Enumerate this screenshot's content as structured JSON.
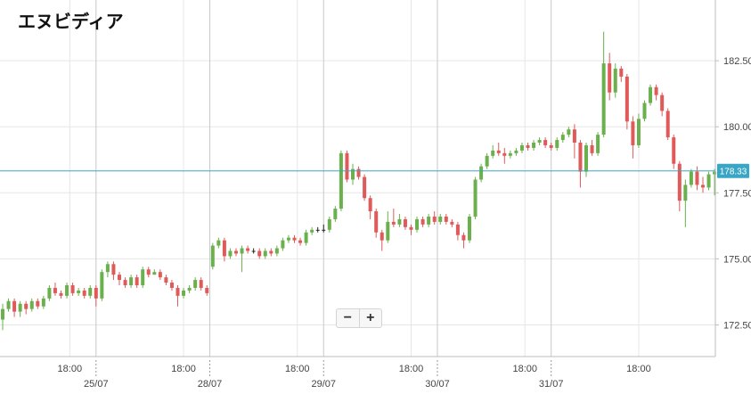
{
  "title": "エヌビディア",
  "zoom": {
    "minus": "−",
    "plus": "+"
  },
  "colors": {
    "up": "#6ab04c",
    "down": "#e05a5a",
    "neutral": "#222222",
    "current_line": "#3aa6c6",
    "grid": "#e6e6e6",
    "axis": "#bdbdbd"
  },
  "chart_data": {
    "type": "candlestick",
    "title": "エヌビディア",
    "current_price": 178.33,
    "current_label": "178.33",
    "ylim": [
      171.3,
      184.8
    ],
    "y_ticks": [
      {
        "value": 172.5,
        "label": "172.50"
      },
      {
        "value": 175.0,
        "label": "175.00"
      },
      {
        "value": 177.5,
        "label": "177.50"
      },
      {
        "value": 180.0,
        "label": "180.00"
      },
      {
        "value": 182.5,
        "label": "182.50"
      }
    ],
    "x_time_ticks": [
      {
        "index": 11.5,
        "label": "18:00"
      },
      {
        "index": 31.0,
        "label": "18:00"
      },
      {
        "index": 50.5,
        "label": "18:00"
      },
      {
        "index": 70.0,
        "label": "18:00"
      },
      {
        "index": 89.5,
        "label": "18:00"
      },
      {
        "index": 109.0,
        "label": "18:00"
      }
    ],
    "x_day_ticks": [
      {
        "index": 16.0,
        "label": "25/07"
      },
      {
        "index": 35.5,
        "label": "28/07"
      },
      {
        "index": 55.0,
        "label": "29/07"
      },
      {
        "index": 74.5,
        "label": "30/07"
      },
      {
        "index": 94.0,
        "label": "31/07"
      }
    ],
    "candles": [
      [
        172.7,
        173.1,
        172.3,
        173.3
      ],
      [
        173.1,
        173.4,
        173.0,
        173.5
      ],
      [
        173.4,
        173.0,
        172.8,
        173.5
      ],
      [
        173.0,
        173.3,
        172.8,
        173.4
      ],
      [
        173.3,
        173.1,
        172.9,
        173.4
      ],
      [
        173.1,
        173.4,
        173.0,
        173.5
      ],
      [
        173.4,
        173.2,
        173.1,
        173.5
      ],
      [
        173.2,
        173.5,
        173.1,
        173.6
      ],
      [
        173.5,
        173.9,
        173.4,
        174.0
      ],
      [
        173.9,
        173.7,
        173.6,
        174.1
      ],
      [
        173.7,
        173.6,
        173.5,
        173.8
      ],
      [
        173.6,
        174.0,
        173.5,
        174.1
      ],
      [
        174.0,
        173.7,
        173.6,
        174.1
      ],
      [
        173.7,
        173.8,
        173.6,
        173.9
      ],
      [
        173.8,
        173.6,
        173.5,
        173.9
      ],
      [
        173.6,
        173.9,
        173.5,
        174.0
      ],
      [
        173.9,
        173.5,
        173.2,
        174.0
      ],
      [
        173.5,
        174.5,
        173.4,
        174.6
      ],
      [
        174.5,
        174.8,
        174.3,
        174.9
      ],
      [
        174.8,
        174.4,
        174.2,
        174.9
      ],
      [
        174.4,
        174.2,
        174.0,
        174.5
      ],
      [
        174.2,
        174.0,
        173.9,
        174.3
      ],
      [
        174.0,
        174.3,
        173.9,
        174.4
      ],
      [
        174.3,
        174.0,
        173.9,
        174.4
      ],
      [
        174.0,
        174.6,
        173.9,
        174.7
      ],
      [
        174.6,
        174.4,
        174.3,
        174.7
      ],
      [
        174.4,
        174.5,
        174.4,
        174.6
      ],
      [
        174.5,
        174.3,
        174.2,
        174.6
      ],
      [
        174.3,
        174.1,
        174.0,
        174.4
      ],
      [
        174.1,
        173.9,
        173.8,
        174.2
      ],
      [
        173.9,
        173.6,
        173.2,
        174.0
      ],
      [
        173.6,
        173.8,
        173.5,
        173.9
      ],
      [
        173.8,
        173.9,
        173.7,
        174.0
      ],
      [
        173.9,
        174.2,
        173.8,
        174.3
      ],
      [
        174.2,
        173.9,
        173.8,
        174.3
      ],
      [
        173.9,
        173.7,
        173.6,
        174.0
      ],
      [
        174.7,
        175.5,
        174.6,
        175.6
      ],
      [
        175.5,
        175.7,
        175.4,
        175.8
      ],
      [
        175.7,
        175.1,
        174.9,
        175.8
      ],
      [
        175.1,
        175.3,
        175.0,
        175.4
      ],
      [
        175.3,
        175.2,
        175.1,
        175.4
      ],
      [
        175.2,
        175.4,
        174.5,
        175.5
      ],
      [
        175.4,
        175.3,
        175.2,
        175.5
      ],
      [
        175.3,
        175.3,
        175.2,
        175.4
      ],
      [
        175.3,
        175.1,
        175.0,
        175.4
      ],
      [
        175.1,
        175.3,
        175.0,
        175.4
      ],
      [
        175.3,
        175.2,
        175.1,
        175.4
      ],
      [
        175.2,
        175.4,
        175.1,
        175.5
      ],
      [
        175.4,
        175.7,
        175.3,
        175.8
      ],
      [
        175.7,
        175.8,
        175.6,
        175.9
      ],
      [
        175.8,
        175.7,
        175.6,
        175.9
      ],
      [
        175.7,
        175.6,
        175.5,
        175.8
      ],
      [
        175.6,
        176.0,
        175.5,
        176.1
      ],
      [
        176.0,
        176.1,
        175.9,
        176.2
      ],
      [
        176.1,
        176.1,
        176.0,
        176.2
      ],
      [
        176.1,
        176.1,
        176.0,
        176.3
      ],
      [
        176.1,
        176.5,
        176.0,
        176.6
      ],
      [
        176.5,
        176.9,
        176.4,
        177.0
      ],
      [
        176.9,
        179.0,
        176.8,
        179.1
      ],
      [
        179.0,
        178.0,
        177.9,
        179.1
      ],
      [
        178.0,
        178.4,
        177.8,
        178.6
      ],
      [
        178.4,
        178.1,
        178.0,
        178.5
      ],
      [
        178.1,
        177.3,
        177.2,
        178.2
      ],
      [
        177.3,
        176.8,
        176.5,
        177.4
      ],
      [
        176.8,
        176.0,
        175.8,
        176.9
      ],
      [
        176.0,
        175.7,
        175.3,
        176.1
      ],
      [
        175.7,
        176.4,
        175.6,
        176.8
      ],
      [
        176.4,
        176.3,
        176.2,
        176.9
      ],
      [
        176.3,
        176.5,
        176.2,
        176.7
      ],
      [
        176.5,
        176.2,
        176.1,
        176.6
      ],
      [
        176.2,
        176.1,
        175.9,
        176.3
      ],
      [
        176.1,
        176.5,
        176.0,
        176.6
      ],
      [
        176.5,
        176.3,
        176.2,
        176.6
      ],
      [
        176.3,
        176.6,
        176.2,
        176.7
      ],
      [
        176.6,
        176.4,
        176.3,
        176.8
      ],
      [
        176.4,
        176.6,
        176.3,
        176.7
      ],
      [
        176.6,
        176.4,
        176.3,
        176.7
      ],
      [
        176.4,
        176.3,
        176.2,
        176.5
      ],
      [
        176.3,
        175.9,
        175.7,
        176.4
      ],
      [
        175.9,
        175.7,
        175.4,
        176.0
      ],
      [
        175.7,
        176.6,
        175.6,
        176.7
      ],
      [
        176.6,
        178.0,
        176.5,
        178.1
      ],
      [
        178.0,
        178.5,
        177.9,
        178.6
      ],
      [
        178.5,
        178.9,
        178.4,
        179.0
      ],
      [
        178.9,
        179.1,
        178.8,
        179.3
      ],
      [
        179.1,
        179.0,
        178.9,
        179.4
      ],
      [
        179.0,
        178.9,
        178.6,
        179.2
      ],
      [
        178.9,
        179.0,
        178.8,
        179.1
      ],
      [
        179.0,
        179.1,
        178.9,
        179.2
      ],
      [
        179.1,
        179.3,
        179.0,
        179.4
      ],
      [
        179.3,
        179.2,
        179.1,
        179.4
      ],
      [
        179.2,
        179.4,
        179.1,
        179.5
      ],
      [
        179.4,
        179.5,
        179.3,
        179.6
      ],
      [
        179.5,
        179.3,
        179.2,
        179.6
      ],
      [
        179.3,
        179.2,
        179.1,
        179.4
      ],
      [
        179.2,
        179.5,
        179.1,
        179.6
      ],
      [
        179.5,
        179.7,
        179.4,
        179.8
      ],
      [
        179.7,
        179.9,
        179.6,
        180.0
      ],
      [
        179.9,
        179.4,
        178.8,
        180.1
      ],
      [
        179.4,
        178.3,
        177.7,
        179.5
      ],
      [
        178.3,
        179.3,
        178.1,
        179.4
      ],
      [
        179.3,
        179.0,
        178.9,
        179.5
      ],
      [
        179.0,
        179.7,
        178.9,
        179.8
      ],
      [
        179.7,
        182.4,
        179.6,
        183.6
      ],
      [
        182.4,
        181.3,
        181.0,
        182.8
      ],
      [
        181.3,
        182.2,
        181.1,
        182.4
      ],
      [
        182.2,
        181.9,
        181.7,
        182.3
      ],
      [
        181.9,
        180.2,
        179.9,
        182.0
      ],
      [
        180.2,
        179.3,
        178.8,
        180.4
      ],
      [
        179.3,
        180.3,
        179.2,
        180.5
      ],
      [
        180.3,
        180.9,
        180.2,
        181.0
      ],
      [
        180.9,
        181.5,
        180.8,
        181.6
      ],
      [
        181.5,
        181.2,
        181.0,
        181.6
      ],
      [
        181.2,
        180.6,
        180.4,
        181.3
      ],
      [
        180.6,
        179.6,
        179.5,
        180.7
      ],
      [
        179.6,
        178.6,
        178.4,
        179.7
      ],
      [
        178.6,
        177.2,
        176.8,
        178.7
      ],
      [
        177.2,
        177.8,
        176.2,
        178.0
      ],
      [
        177.8,
        178.3,
        177.7,
        178.4
      ],
      [
        178.3,
        177.8,
        177.6,
        178.5
      ],
      [
        177.8,
        177.7,
        177.5,
        178.1
      ],
      [
        177.7,
        178.2,
        177.6,
        178.3
      ],
      [
        178.2,
        178.3,
        177.4,
        178.4
      ]
    ]
  }
}
